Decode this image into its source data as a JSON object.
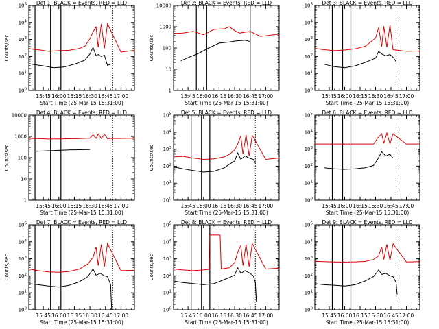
{
  "chart_data": [
    {
      "type": "line",
      "title": "Det  1:  BLACK = Events, RED = LLD",
      "xlabel": "Start Time (25-Mar-15 15:31:00)",
      "ylabel": "Counts/sec",
      "yscale": "log",
      "ylim": [
        1,
        100000
      ],
      "ytick_labels": [
        "10^0",
        "10^1",
        "10^2",
        "10^3",
        "10^4",
        "10^5"
      ],
      "xlim": [
        "15:31",
        "17:13"
      ],
      "xtick_labels": [
        "15:45",
        "16:00",
        "16:15",
        "16:30",
        "16:45",
        "17:00"
      ],
      "solid_markers": [
        "15:37",
        "15:52",
        "16:02"
      ],
      "dotted_markers": [
        "16:52"
      ],
      "series": [
        {
          "color": "#000000",
          "x": [
            "15:34",
            "15:45",
            "15:55",
            "16:05",
            "16:15",
            "16:25",
            "16:30",
            "16:33",
            "16:36",
            "16:38",
            "16:41",
            "16:44",
            "16:47",
            "16:50"
          ],
          "y": [
            35,
            28,
            22,
            24,
            35,
            60,
            140,
            350,
            110,
            130,
            100,
            120,
            30,
            35
          ]
        },
        {
          "color": "#dd0000",
          "x": [
            "15:31",
            "15:40",
            "15:50",
            "16:00",
            "16:10",
            "16:20",
            "16:25",
            "16:30",
            "16:33",
            "16:36",
            "16:38",
            "16:41",
            "16:44",
            "16:47",
            "17:00",
            "17:13"
          ],
          "y": [
            280,
            250,
            200,
            220,
            230,
            300,
            400,
            1100,
            2800,
            5500,
            350,
            8000,
            300,
            8500,
            180,
            230
          ]
        }
      ]
    },
    {
      "type": "line",
      "title": "Det  2:  BLACK = Events, RED = LLD",
      "xlabel": "Start Time (25-Mar-15 15:31:00)",
      "ylabel": "Counts/sec",
      "yscale": "log",
      "ylim": [
        1,
        10000
      ],
      "ytick_labels": [
        "1",
        "10",
        "100",
        "1000",
        "10000"
      ],
      "xlim": [
        "15:31",
        "17:13"
      ],
      "xtick_labels": [
        "15:45",
        "16:00",
        "16:15",
        "16:30",
        "16:45",
        "17:00"
      ],
      "solid_markers": [
        "15:53",
        "16:03",
        "16:45"
      ],
      "dotted_markers": [],
      "series": [
        {
          "color": "#000000",
          "x": [
            "15:38",
            "15:45",
            "15:55",
            "16:05",
            "16:10",
            "16:15",
            "16:25",
            "16:30",
            "16:35",
            "16:40",
            "16:45"
          ],
          "y": [
            25,
            35,
            55,
            100,
            130,
            170,
            190,
            210,
            220,
            230,
            200
          ]
        },
        {
          "color": "#dd0000",
          "x": [
            "15:31",
            "15:40",
            "15:50",
            "16:00",
            "16:10",
            "16:20",
            "16:25",
            "16:30",
            "16:35",
            "16:40",
            "16:45",
            "16:55",
            "17:05",
            "17:13"
          ],
          "y": [
            480,
            500,
            600,
            420,
            750,
            800,
            1000,
            650,
            500,
            550,
            600,
            350,
            400,
            450
          ]
        }
      ]
    },
    {
      "type": "line",
      "title": "Det  3:  BLACK = Events, RED = LLD",
      "xlabel": "Start Time (25-Mar-15 15:31:00)",
      "ylabel": "",
      "yscale": "log",
      "ylim": [
        1,
        100000
      ],
      "ytick_labels": [
        "10^0",
        "10^1",
        "10^2",
        "10^3",
        "10^4",
        "10^5"
      ],
      "xlim": [
        "15:31",
        "17:13"
      ],
      "xtick_labels": [
        "15:45",
        "16:00",
        "16:15",
        "16:30",
        "16:45",
        "17:00"
      ],
      "solid_markers": [
        "15:48",
        "15:58",
        "16:06"
      ],
      "dotted_markers": [
        "16:50"
      ],
      "series": [
        {
          "color": "#000000",
          "x": [
            "15:40",
            "15:50",
            "16:00",
            "16:10",
            "16:20",
            "16:30",
            "16:33",
            "16:36",
            "16:40",
            "16:44",
            "16:47",
            "16:50"
          ],
          "y": [
            35,
            25,
            22,
            28,
            45,
            80,
            200,
            140,
            110,
            130,
            90,
            50
          ]
        },
        {
          "color": "#dd0000",
          "x": [
            "15:31",
            "15:40",
            "15:50",
            "16:00",
            "16:10",
            "16:20",
            "16:30",
            "16:33",
            "16:36",
            "16:38",
            "16:41",
            "16:44",
            "16:47",
            "17:00",
            "17:13"
          ],
          "y": [
            300,
            250,
            220,
            240,
            280,
            400,
            1200,
            5000,
            380,
            6000,
            350,
            7000,
            250,
            200,
            210
          ]
        }
      ]
    },
    {
      "type": "line",
      "title": "Det  4:  BLACK = Events, RED = LLD",
      "xlabel": "Start Time (25-Mar-15 15:31:00)",
      "ylabel": "Counts/sec",
      "yscale": "log",
      "ylim": [
        1,
        10000
      ],
      "ytick_labels": [
        "1",
        "10",
        "100",
        "1000",
        "10000"
      ],
      "xlim": [
        "15:31",
        "17:13"
      ],
      "xtick_labels": [
        "15:45",
        "16:00",
        "16:15",
        "16:30",
        "16:45",
        "17:00"
      ],
      "solid_markers": [
        "15:37",
        "15:52",
        "16:02"
      ],
      "dotted_markers": [
        "16:52"
      ],
      "series": [
        {
          "color": "#000000",
          "x": [
            "15:38",
            "15:50",
            "16:00",
            "16:10",
            "16:20",
            "16:30"
          ],
          "y": [
            200,
            210,
            220,
            230,
            235,
            240
          ]
        },
        {
          "color": "#dd0000",
          "x": [
            "15:31",
            "15:40",
            "15:50",
            "16:00",
            "16:10",
            "16:20",
            "16:30",
            "16:33",
            "16:36",
            "16:38",
            "16:41",
            "16:44",
            "16:47",
            "17:00",
            "17:13"
          ],
          "y": [
            800,
            780,
            750,
            760,
            770,
            790,
            820,
            1200,
            800,
            1300,
            800,
            1250,
            790,
            800,
            820
          ]
        }
      ]
    },
    {
      "type": "line",
      "title": "Det  5:  BLACK = Events, RED = LLD",
      "xlabel": "Start Time (25-Mar-15 15:31:00)",
      "ylabel": "Counts/sec",
      "yscale": "log",
      "ylim": [
        1,
        100000
      ],
      "ytick_labels": [
        "10^0",
        "10^1",
        "10^2",
        "10^3",
        "10^4",
        "10^5"
      ],
      "xlim": [
        "15:31",
        "17:13"
      ],
      "xtick_labels": [
        "15:45",
        "16:00",
        "16:15",
        "16:30",
        "16:45",
        "17:00"
      ],
      "solid_markers": [
        "15:48",
        "15:58",
        "16:06"
      ],
      "dotted_markers": [
        "16:50"
      ],
      "series": [
        {
          "color": "#000000",
          "x": [
            "15:31",
            "15:40",
            "15:50",
            "16:00",
            "16:10",
            "16:20",
            "16:25",
            "16:30",
            "16:33",
            "16:36",
            "16:40",
            "16:44",
            "16:48",
            "16:50"
          ],
          "y": [
            90,
            70,
            55,
            45,
            50,
            80,
            130,
            200,
            600,
            250,
            400,
            300,
            250,
            150
          ]
        },
        {
          "color": "#dd0000",
          "x": [
            "15:31",
            "15:40",
            "15:50",
            "16:00",
            "16:10",
            "16:20",
            "16:25",
            "16:30",
            "16:33",
            "16:36",
            "16:38",
            "16:41",
            "16:44",
            "16:47",
            "17:00",
            "17:13"
          ],
          "y": [
            350,
            380,
            300,
            250,
            270,
            350,
            500,
            900,
            2000,
            6000,
            500,
            7000,
            400,
            6500,
            250,
            300
          ]
        }
      ]
    },
    {
      "type": "line",
      "title": "Det  6:  BLACK = Events, RED = LLD",
      "xlabel": "Start Time (25-Mar-15 15:31:00)",
      "ylabel": "",
      "yscale": "log",
      "ylim": [
        1,
        100000
      ],
      "ytick_labels": [
        "10^0",
        "10^1",
        "10^2",
        "10^3",
        "10^4",
        "10^5"
      ],
      "xlim": [
        "15:31",
        "17:13"
      ],
      "xtick_labels": [
        "15:45",
        "16:00",
        "16:15",
        "16:30",
        "16:45",
        "17:00"
      ],
      "solid_markers": [
        "15:48",
        "15:58",
        "16:06"
      ],
      "dotted_markers": [
        "16:50"
      ],
      "series": [
        {
          "color": "#000000",
          "x": [
            "15:40",
            "15:50",
            "16:00",
            "16:10",
            "16:20",
            "16:28",
            "16:32",
            "16:36",
            "16:40",
            "16:44",
            "16:47"
          ],
          "y": [
            80,
            70,
            65,
            70,
            80,
            110,
            250,
            700,
            400,
            500,
            300
          ]
        },
        {
          "color": "#dd0000",
          "x": [
            "15:31",
            "15:50",
            "16:10",
            "16:28",
            "16:32",
            "16:36",
            "16:38",
            "16:41",
            "16:44",
            "16:47",
            "17:00",
            "17:13"
          ],
          "y": [
            2000,
            2000,
            2000,
            2000,
            4500,
            8000,
            2200,
            9000,
            2100,
            8000,
            2000,
            2000
          ]
        }
      ]
    },
    {
      "type": "line",
      "title": "Det  7:  BLACK = Events, RED = LLD",
      "xlabel": "Start Time (25-Mar-15 15:31:00)",
      "ylabel": "Counts/sec",
      "yscale": "log",
      "ylim": [
        1,
        100000
      ],
      "ytick_labels": [
        "10^0",
        "10^1",
        "10^2",
        "10^3",
        "10^4",
        "10^5"
      ],
      "xlim": [
        "15:31",
        "17:13"
      ],
      "xtick_labels": [
        "15:45",
        "16:00",
        "16:15",
        "16:30",
        "16:45",
        "17:00"
      ],
      "solid_markers": [
        "15:37",
        "15:52",
        "16:02"
      ],
      "dotted_markers": [
        "16:52"
      ],
      "series": [
        {
          "color": "#000000",
          "x": [
            "15:31",
            "15:40",
            "15:50",
            "16:00",
            "16:10",
            "16:20",
            "16:28",
            "16:33",
            "16:36",
            "16:40",
            "16:44",
            "16:47",
            "16:50",
            "16:51"
          ],
          "y": [
            35,
            30,
            25,
            22,
            28,
            45,
            90,
            250,
            110,
            140,
            100,
            90,
            30,
            1
          ]
        },
        {
          "color": "#dd0000",
          "x": [
            "15:31",
            "15:40",
            "15:50",
            "16:00",
            "16:10",
            "16:20",
            "16:28",
            "16:33",
            "16:36",
            "16:38",
            "16:41",
            "16:44",
            "16:47",
            "17:00",
            "17:13"
          ],
          "y": [
            250,
            200,
            170,
            160,
            180,
            250,
            500,
            1200,
            5000,
            400,
            7000,
            350,
            8000,
            200,
            210
          ]
        }
      ]
    },
    {
      "type": "line",
      "title": "Det  8:  BLACK = Events, RED = LLD",
      "xlabel": "Start Time (25-Mar-15 15:31:00)",
      "ylabel": "Counts/sec",
      "yscale": "log",
      "ylim": [
        1,
        100000
      ],
      "ytick_labels": [
        "10^0",
        "10^1",
        "10^2",
        "10^3",
        "10^4",
        "10^5"
      ],
      "xlim": [
        "15:31",
        "17:13"
      ],
      "xtick_labels": [
        "15:45",
        "16:00",
        "16:15",
        "16:30",
        "16:45",
        "17:00"
      ],
      "solid_markers": [
        "15:48",
        "15:58",
        "16:06"
      ],
      "dotted_markers": [
        "16:50"
      ],
      "series": [
        {
          "color": "#000000",
          "x": [
            "15:31",
            "15:40",
            "15:50",
            "16:00",
            "16:10",
            "16:15",
            "16:20",
            "16:25",
            "16:30",
            "16:33",
            "16:36",
            "16:40",
            "16:44",
            "16:48",
            "16:50",
            "16:51"
          ],
          "y": [
            50,
            40,
            35,
            30,
            35,
            45,
            60,
            80,
            110,
            300,
            140,
            200,
            150,
            100,
            40,
            3
          ]
        },
        {
          "color": "#dd0000",
          "x": [
            "15:31",
            "15:40",
            "15:50",
            "16:00",
            "16:05",
            "16:06",
            "16:16",
            "16:17",
            "16:25",
            "16:30",
            "16:33",
            "16:36",
            "16:38",
            "16:41",
            "16:44",
            "16:47",
            "17:00",
            "17:13"
          ],
          "y": [
            250,
            220,
            200,
            220,
            240,
            25000,
            25000,
            250,
            300,
            600,
            2500,
            6000,
            400,
            7000,
            350,
            8000,
            250,
            280
          ]
        }
      ]
    },
    {
      "type": "line",
      "title": "Det  9:  BLACK = Events, RED = LLD",
      "xlabel": "Start Time (25-Mar-15 15:31:00)",
      "ylabel": "",
      "yscale": "log",
      "ylim": [
        1,
        100000
      ],
      "ytick_labels": [
        "10^0",
        "10^1",
        "10^2",
        "10^3",
        "10^4",
        "10^5"
      ],
      "xlim": [
        "15:31",
        "17:13"
      ],
      "xtick_labels": [
        "15:45",
        "16:00",
        "16:15",
        "16:30",
        "16:45",
        "17:00"
      ],
      "solid_markers": [
        "15:48",
        "15:58",
        "16:06"
      ],
      "dotted_markers": [
        "16:50"
      ],
      "series": [
        {
          "color": "#000000",
          "x": [
            "15:31",
            "15:40",
            "15:50",
            "16:00",
            "16:10",
            "16:20",
            "16:28",
            "16:33",
            "16:36",
            "16:40",
            "16:44",
            "16:47",
            "16:50",
            "16:51"
          ],
          "y": [
            35,
            30,
            28,
            25,
            30,
            50,
            90,
            220,
            120,
            140,
            100,
            90,
            40,
            8
          ]
        },
        {
          "color": "#dd0000",
          "x": [
            "15:31",
            "15:40",
            "15:50",
            "16:00",
            "16:10",
            "16:20",
            "16:28",
            "16:33",
            "16:36",
            "16:38",
            "16:41",
            "16:44",
            "16:47",
            "17:00",
            "17:13"
          ],
          "y": [
            700,
            680,
            650,
            640,
            660,
            700,
            900,
            1500,
            5000,
            900,
            7000,
            800,
            7500,
            650,
            680
          ]
        }
      ]
    }
  ]
}
